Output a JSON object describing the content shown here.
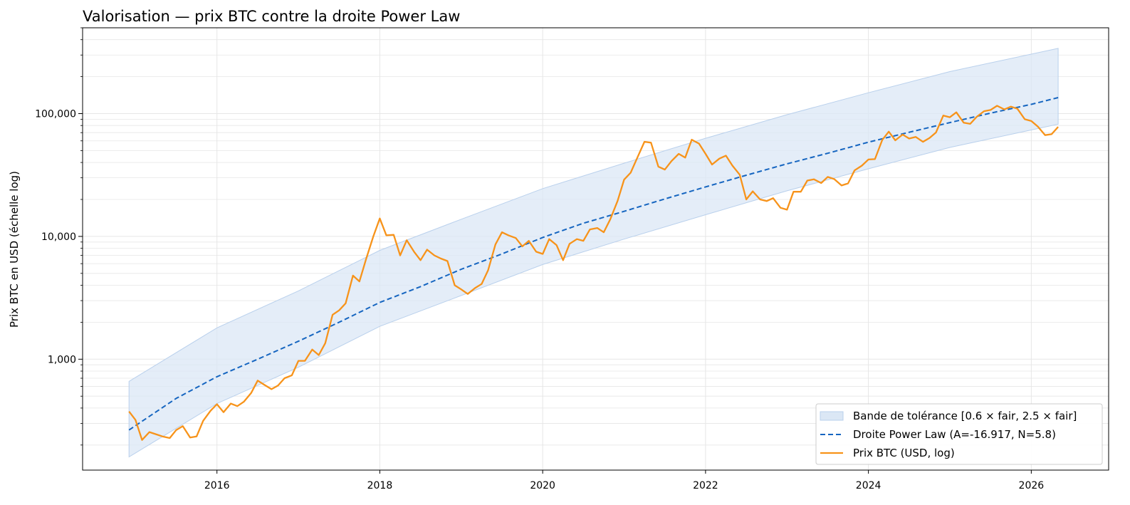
{
  "chart_data": {
    "type": "line",
    "title": "Valorisation — prix BTC contre la droite Power Law",
    "xlabel": "",
    "ylabel": "Prix BTC en USD (échelle log)",
    "yscale": "log",
    "ylim": [
      125,
      500000
    ],
    "xlim": [
      2014.35,
      2026.95
    ],
    "x_ticks": [
      2016,
      2018,
      2020,
      2022,
      2024,
      2026
    ],
    "x_tick_labels": [
      "2016",
      "2018",
      "2020",
      "2022",
      "2024",
      "2026"
    ],
    "y_ticks": [
      1000,
      10000,
      100000
    ],
    "y_tick_labels": [
      "1,000",
      "10,000",
      "100,000"
    ],
    "grid": true,
    "legend_position": "lower-right",
    "colors": {
      "price": "#f7931a",
      "fair": "#1565c0",
      "band_fill": "#dbe7f5",
      "band_edge": "#b9d0ec"
    },
    "band": {
      "name": "Bande de tolérance [0.6 × fair, 2.5 × fair]",
      "x": [
        2014.92,
        2016,
        2017,
        2018,
        2019,
        2020,
        2021,
        2022,
        2023,
        2024,
        2025,
        2026.33
      ],
      "lower": [
        160,
        435,
        860,
        1850,
        3300,
        5900,
        9500,
        15000,
        23500,
        35500,
        53000,
        82000
      ],
      "upper": [
        660,
        1800,
        3600,
        7700,
        13800,
        24500,
        39500,
        63000,
        98000,
        148000,
        220000,
        340000
      ]
    },
    "series": [
      {
        "name": "Droite Power Law (A=-16.917, N=5.8)",
        "style": "dashed",
        "x": [
          2014.92,
          2015.5,
          2016,
          2016.5,
          2017,
          2017.5,
          2018,
          2018.5,
          2019,
          2019.5,
          2020,
          2020.5,
          2021,
          2021.5,
          2022,
          2022.5,
          2023,
          2023.5,
          2024,
          2024.5,
          2025,
          2025.5,
          2026,
          2026.33
        ],
        "values": [
          265,
          480,
          720,
          1000,
          1400,
          2000,
          2900,
          3900,
          5400,
          7200,
          9800,
          12800,
          16000,
          20200,
          25300,
          31500,
          39000,
          47500,
          58500,
          70500,
          84500,
          101000,
          119000,
          135000
        ]
      },
      {
        "name": "Prix BTC (USD, log)",
        "style": "solid",
        "x": [
          2014.92,
          2015.0,
          2015.08,
          2015.17,
          2015.25,
          2015.33,
          2015.42,
          2015.5,
          2015.58,
          2015.67,
          2015.75,
          2015.83,
          2015.92,
          2016.0,
          2016.08,
          2016.17,
          2016.25,
          2016.33,
          2016.42,
          2016.5,
          2016.58,
          2016.67,
          2016.75,
          2016.83,
          2016.92,
          2017.0,
          2017.08,
          2017.17,
          2017.25,
          2017.33,
          2017.42,
          2017.5,
          2017.58,
          2017.67,
          2017.75,
          2017.83,
          2017.92,
          2018.0,
          2018.08,
          2018.17,
          2018.25,
          2018.33,
          2018.42,
          2018.5,
          2018.58,
          2018.67,
          2018.75,
          2018.83,
          2018.92,
          2019.0,
          2019.08,
          2019.17,
          2019.25,
          2019.33,
          2019.42,
          2019.5,
          2019.58,
          2019.67,
          2019.75,
          2019.83,
          2019.92,
          2020.0,
          2020.08,
          2020.17,
          2020.25,
          2020.33,
          2020.42,
          2020.5,
          2020.58,
          2020.67,
          2020.75,
          2020.83,
          2020.92,
          2021.0,
          2021.08,
          2021.17,
          2021.25,
          2021.33,
          2021.42,
          2021.5,
          2021.58,
          2021.67,
          2021.75,
          2021.83,
          2021.92,
          2022.0,
          2022.08,
          2022.17,
          2022.25,
          2022.33,
          2022.42,
          2022.5,
          2022.58,
          2022.67,
          2022.75,
          2022.83,
          2022.92,
          2023.0,
          2023.08,
          2023.17,
          2023.25,
          2023.33,
          2023.42,
          2023.5,
          2023.58,
          2023.67,
          2023.75,
          2023.83,
          2023.92,
          2024.0,
          2024.08,
          2024.17,
          2024.25,
          2024.33,
          2024.42,
          2024.5,
          2024.58,
          2024.67,
          2024.75,
          2024.83,
          2024.92,
          2025.0,
          2025.08,
          2025.17,
          2025.25,
          2025.33,
          2025.42,
          2025.5,
          2025.58,
          2025.67,
          2025.75,
          2025.83,
          2025.92,
          2026.0,
          2026.08,
          2026.17,
          2026.25,
          2026.33
        ],
        "values": [
          375,
          320,
          220,
          255,
          245,
          235,
          228,
          265,
          285,
          230,
          235,
          315,
          380,
          430,
          370,
          435,
          415,
          450,
          530,
          670,
          620,
          570,
          610,
          700,
          740,
          970,
          970,
          1200,
          1080,
          1350,
          2300,
          2500,
          2850,
          4800,
          4300,
          6500,
          10000,
          14000,
          10200,
          10300,
          7000,
          9300,
          7500,
          6400,
          7800,
          7000,
          6600,
          6300,
          4000,
          3700,
          3400,
          3800,
          4100,
          5300,
          8600,
          10800,
          10200,
          9700,
          8300,
          9200,
          7500,
          7200,
          9500,
          8500,
          6400,
          8700,
          9500,
          9200,
          11400,
          11700,
          10800,
          13800,
          19500,
          29000,
          33000,
          45000,
          59000,
          58000,
          37000,
          35000,
          41000,
          47000,
          43800,
          61300,
          57000,
          47000,
          38500,
          43000,
          45500,
          37700,
          31800,
          20000,
          23300,
          20000,
          19400,
          20500,
          17100,
          16500,
          23100,
          23100,
          28500,
          29200,
          27200,
          30500,
          29300,
          26000,
          27000,
          34500,
          37700,
          42300,
          42600,
          61100,
          71300,
          60600,
          67500,
          62700,
          64600,
          58900,
          63300,
          70200,
          96500,
          93400,
          102400,
          84400,
          82500,
          94200,
          104700,
          107100,
          115800,
          108200,
          114000,
          109500,
          90000,
          87000,
          78500,
          66800,
          68000,
          78000
        ]
      }
    ]
  }
}
